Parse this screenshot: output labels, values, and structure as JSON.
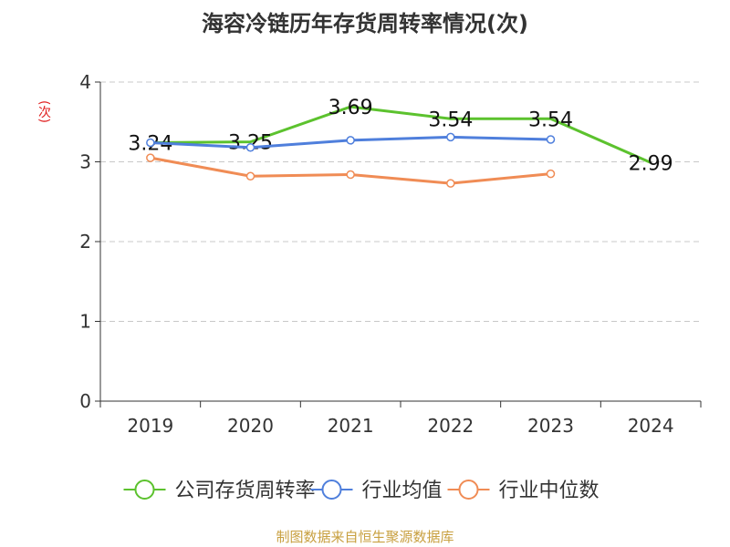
{
  "title": "海容冷链历年存货周转率情况(次)",
  "source": "制图数据来自恒生聚源数据库",
  "chart_data": {
    "type": "line",
    "title": "海容冷链历年存货周转率情况(次)",
    "ylabel": "(次)",
    "xlabel": "",
    "categories": [
      "2019",
      "2020",
      "2021",
      "2022",
      "2023",
      "2024"
    ],
    "ylim": [
      0,
      4
    ],
    "yticks": [
      0,
      1,
      2,
      3,
      4
    ],
    "grid": true,
    "legend_position": "bottom",
    "series": [
      {
        "name": "公司存货周转率",
        "color": "#5cc22e",
        "values": [
          3.24,
          3.25,
          3.69,
          3.54,
          3.54,
          2.99
        ],
        "labels": [
          "3.24",
          "3.25",
          "3.69",
          "3.54",
          "3.54",
          "2.99"
        ],
        "markers": false
      },
      {
        "name": "行业均值",
        "color": "#4f7fdc",
        "values": [
          3.24,
          3.18,
          3.27,
          3.31,
          3.28,
          null
        ],
        "markers": true
      },
      {
        "name": "行业中位数",
        "color": "#f08c55",
        "values": [
          3.05,
          2.82,
          2.84,
          2.73,
          2.85,
          null
        ],
        "markers": true
      }
    ]
  }
}
